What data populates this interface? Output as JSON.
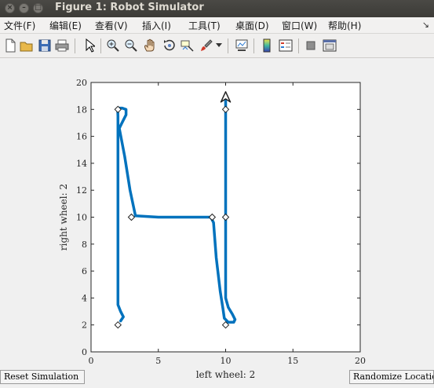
{
  "window": {
    "title": "Figure 1: Robot Simulator"
  },
  "menu": [
    "文件(F)",
    "编辑(E)",
    "查看(V)",
    "插入(I)",
    "工具(T)",
    "桌面(D)",
    "窗口(W)",
    "帮助(H)"
  ],
  "toolbar_icons": [
    "new-figure-icon",
    "open-file-icon",
    "save-icon",
    "print-icon",
    "select-arrow-icon",
    "zoom-in-icon",
    "zoom-out-icon",
    "pan-hand-icon",
    "rotate-3d-icon",
    "data-cursor-icon",
    "brush-icon",
    "brush-dropdown-icon",
    "link-plot-icon",
    "colorbar-icon",
    "legend-icon",
    "hide-plot-tools-icon",
    "show-plot-tools-icon"
  ],
  "chart_data": {
    "type": "line",
    "xlabel": "left wheel: 2",
    "ylabel": "right wheel: 2",
    "xlim": [
      0,
      20
    ],
    "ylim": [
      0,
      20
    ],
    "xticks": [
      0,
      5,
      10,
      15,
      20
    ],
    "yticks": [
      0,
      2,
      4,
      6,
      8,
      10,
      12,
      14,
      16,
      18,
      20
    ],
    "series": [
      {
        "color": "#0072bd",
        "x": [
          2.2,
          2.4,
          2.2,
          2.0,
          2.0,
          2.0,
          2.0,
          2.0,
          2.0,
          1.98,
          2.0,
          2.3,
          2.6,
          2.6,
          2.3,
          2.1,
          2.5,
          2.9,
          3.3,
          5,
          7,
          8.9,
          9.1,
          9.3,
          9.6,
          9.8,
          9.9,
          10.2,
          10.6,
          10.7,
          10.5,
          10.2,
          10.0,
          10.0,
          10.0,
          10.0,
          10.0,
          10.0
        ],
        "y": [
          2.3,
          2.6,
          3.0,
          3.5,
          6,
          10,
          14,
          16,
          17.5,
          17.9,
          18.1,
          18.1,
          18.0,
          17.6,
          17.0,
          16.6,
          14.5,
          12,
          10.1,
          10.0,
          10.0,
          10.0,
          9.6,
          7,
          4.5,
          3.2,
          2.5,
          2.2,
          2.2,
          2.4,
          2.8,
          3.3,
          4,
          6,
          10,
          14,
          18,
          18.8
        ]
      }
    ],
    "waypoints": [
      [
        2,
        2
      ],
      [
        2,
        18
      ],
      [
        3,
        10
      ],
      [
        9,
        10
      ],
      [
        10,
        2
      ],
      [
        10,
        10
      ],
      [
        10,
        18
      ]
    ],
    "robot_marker": {
      "x": 10,
      "y": 18.9,
      "heading": "up"
    }
  },
  "buttons": {
    "reset": "Reset Simulation",
    "randomize": "Randomize Location"
  }
}
